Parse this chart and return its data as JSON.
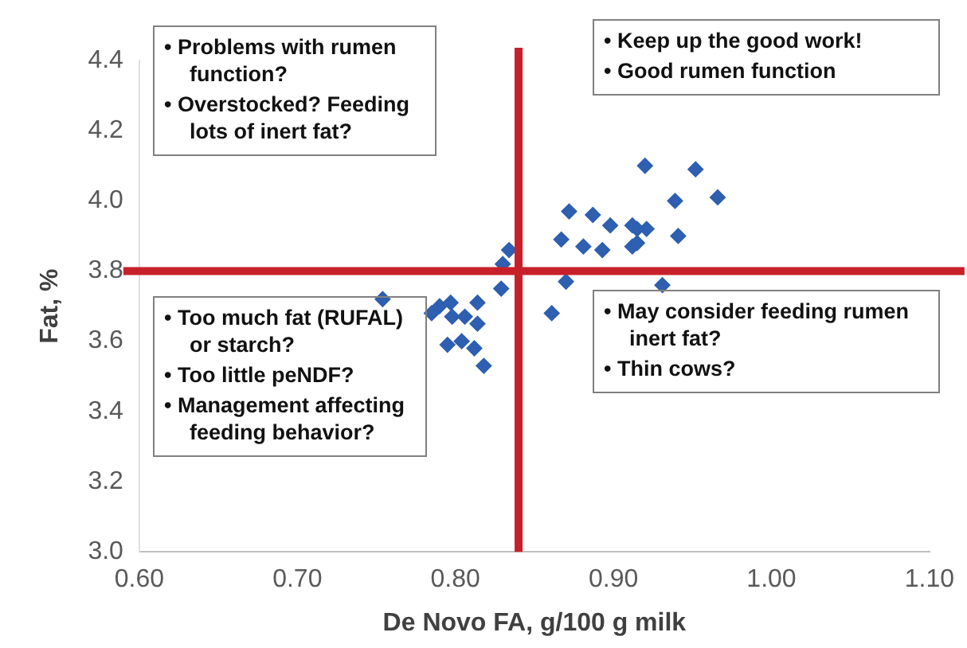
{
  "chart_data": {
    "type": "scatter",
    "xlabel": "De Novo FA, g/100 g milk",
    "ylabel": "Fat, %",
    "x": [
      0.834,
      0.83,
      0.829,
      0.872,
      0.887,
      0.898,
      0.867,
      0.881,
      0.893,
      0.912,
      0.915,
      0.921,
      0.912,
      0.915,
      0.939,
      0.966,
      0.941,
      0.931,
      0.87,
      0.861,
      0.92,
      0.952,
      0.814,
      0.797,
      0.798,
      0.806,
      0.814,
      0.795,
      0.804,
      0.812,
      0.818,
      0.754,
      0.785,
      0.79
    ],
    "values": [
      3.86,
      3.82,
      3.75,
      3.97,
      3.96,
      3.93,
      3.89,
      3.87,
      3.86,
      3.93,
      3.92,
      3.92,
      3.87,
      3.88,
      4.0,
      4.01,
      3.9,
      3.76,
      3.77,
      3.68,
      4.1,
      4.09,
      3.71,
      3.71,
      3.67,
      3.67,
      3.65,
      3.59,
      3.6,
      3.58,
      3.53,
      3.72,
      3.68,
      3.7
    ],
    "color": "#2e5fb0",
    "marker": "diamond",
    "xlim": [
      0.6,
      1.1
    ],
    "xticks": [
      {
        "value": 0.6,
        "label": "0.60"
      },
      {
        "value": 0.7,
        "label": "0.70"
      },
      {
        "value": 0.8,
        "label": "0.80"
      },
      {
        "value": 0.9,
        "label": "0.90"
      },
      {
        "value": 1.0,
        "label": "1.00"
      },
      {
        "value": 1.1,
        "label": "1.10"
      }
    ],
    "ylim": [
      3.0,
      4.4
    ],
    "yticks": [
      {
        "value": 3.0,
        "label": "3.0"
      },
      {
        "value": 3.2,
        "label": "3.2"
      },
      {
        "value": 3.4,
        "label": "3.4"
      },
      {
        "value": 3.6,
        "label": "3.6"
      },
      {
        "value": 3.8,
        "label": "3.8"
      },
      {
        "value": 4.0,
        "label": "4.0"
      },
      {
        "value": 4.2,
        "label": "4.2"
      },
      {
        "value": 4.4,
        "label": "4.4"
      }
    ],
    "grid": false,
    "legend": false,
    "ref_lines": [
      {
        "axis": "x",
        "value": 0.84,
        "color": "#c8202a"
      },
      {
        "axis": "y",
        "value": 3.8,
        "color": "#c8202a"
      }
    ],
    "annotations": [
      "• Problems with rumen function?\n• Overstocked? Feeding lots of inert fat?",
      "• Keep up the good work!\n• Good rumen function",
      "• Too much fat (RUFAL) or starch?\n• Too little peNDF?\n• Management affecting feeding behavior?",
      "• May consider feeding rumen inert fat?\n• Thin cows?"
    ]
  }
}
